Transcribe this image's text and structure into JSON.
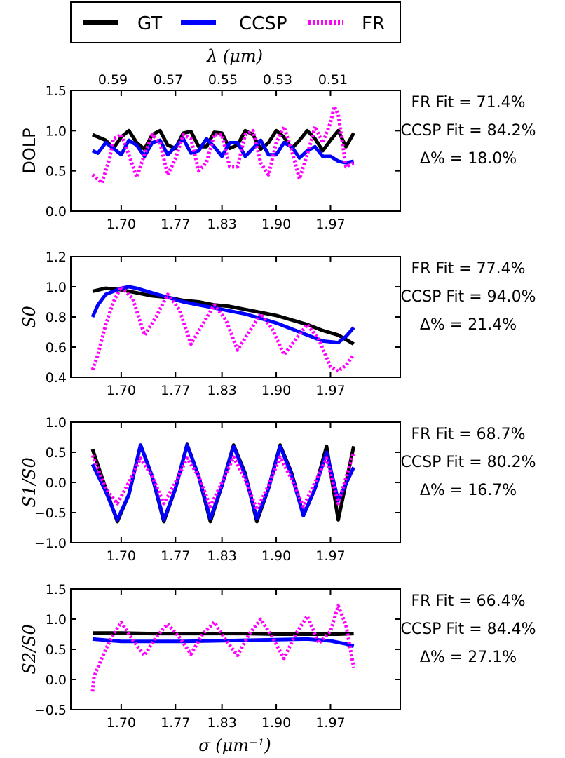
{
  "legend": [
    {
      "name": "GT",
      "color": "#000000",
      "dash": "solid"
    },
    {
      "name": "CCSP",
      "color": "#0000ff",
      "dash": "solid"
    },
    {
      "name": "FR",
      "color": "#ff00ff",
      "dash": "dotted"
    }
  ],
  "top_axis": {
    "label": "λ (μm)",
    "ticks": [
      "0.59",
      "0.57",
      "0.55",
      "0.53",
      "0.51"
    ]
  },
  "bottom_axis": {
    "label": "σ (μm⁻¹)"
  },
  "chart_data": [
    {
      "type": "line",
      "ylabel": "DOLP",
      "ylim": [
        0.0,
        1.5
      ],
      "yticks": [
        "0.0",
        "0.5",
        "1.0",
        "1.5"
      ],
      "xlim": [
        1.635,
        2.06
      ],
      "xticks": [
        "1.70",
        "1.77",
        "1.83",
        "1.90",
        "1.97"
      ],
      "series": [
        {
          "name": "GT",
          "x": [
            1.663,
            1.68,
            1.69,
            1.7,
            1.71,
            1.72,
            1.73,
            1.74,
            1.75,
            1.76,
            1.77,
            1.78,
            1.79,
            1.8,
            1.81,
            1.82,
            1.83,
            1.84,
            1.85,
            1.86,
            1.87,
            1.88,
            1.89,
            1.9,
            1.91,
            1.92,
            1.93,
            1.94,
            1.95,
            1.96,
            1.97,
            1.98,
            1.99,
            2.0
          ],
          "y": [
            0.95,
            0.88,
            0.78,
            0.92,
            1.0,
            0.85,
            0.77,
            0.95,
            1.0,
            0.82,
            0.78,
            0.97,
            0.99,
            0.8,
            0.8,
            0.98,
            0.97,
            0.78,
            0.82,
            1.0,
            0.95,
            0.77,
            0.85,
            1.0,
            0.92,
            0.78,
            0.88,
            1.0,
            0.9,
            0.75,
            0.88,
            1.0,
            0.8,
            0.97
          ]
        },
        {
          "name": "CCSP",
          "x": [
            1.663,
            1.67,
            1.68,
            1.69,
            1.7,
            1.71,
            1.72,
            1.73,
            1.74,
            1.75,
            1.76,
            1.77,
            1.78,
            1.79,
            1.8,
            1.81,
            1.82,
            1.83,
            1.84,
            1.85,
            1.86,
            1.87,
            1.88,
            1.89,
            1.9,
            1.91,
            1.92,
            1.93,
            1.94,
            1.95,
            1.96,
            1.97,
            1.98,
            1.99,
            2.0
          ],
          "y": [
            0.75,
            0.72,
            0.85,
            0.78,
            0.7,
            0.88,
            0.82,
            0.68,
            0.85,
            0.88,
            0.7,
            0.8,
            0.9,
            0.72,
            0.75,
            0.9,
            0.8,
            0.68,
            0.85,
            0.85,
            0.68,
            0.78,
            0.88,
            0.7,
            0.7,
            0.85,
            0.8,
            0.66,
            0.75,
            0.8,
            0.68,
            0.68,
            0.62,
            0.6,
            0.62
          ]
        },
        {
          "name": "FR",
          "x": [
            1.663,
            1.67,
            1.675,
            1.685,
            1.69,
            1.7,
            1.71,
            1.72,
            1.73,
            1.74,
            1.75,
            1.76,
            1.77,
            1.78,
            1.79,
            1.8,
            1.81,
            1.82,
            1.83,
            1.84,
            1.85,
            1.86,
            1.87,
            1.88,
            1.89,
            1.9,
            1.91,
            1.92,
            1.93,
            1.94,
            1.95,
            1.96,
            1.97,
            1.975,
            1.98,
            1.99,
            2.0
          ],
          "y": [
            0.45,
            0.4,
            0.35,
            0.65,
            0.9,
            0.95,
            0.7,
            0.42,
            0.7,
            0.95,
            0.85,
            0.45,
            0.65,
            0.95,
            0.9,
            0.5,
            0.6,
            0.95,
            0.95,
            0.55,
            0.55,
            0.95,
            1.0,
            0.6,
            0.45,
            0.85,
            1.05,
            0.75,
            0.4,
            0.7,
            1.05,
            0.85,
            1.1,
            1.3,
            1.2,
            0.55,
            0.6
          ]
        }
      ],
      "annotations": [
        "FR Fit = 71.4%",
        "CCSP Fit = 84.2%",
        "Δ% = 18.0%"
      ]
    },
    {
      "type": "line",
      "ylabel": "S0",
      "ylim": [
        0.4,
        1.2
      ],
      "yticks": [
        "0.4",
        "0.6",
        "0.8",
        "1.0",
        "1.2"
      ],
      "xlim": [
        1.635,
        2.06
      ],
      "xticks": [
        "1.70",
        "1.77",
        "1.83",
        "1.90",
        "1.97"
      ],
      "series": [
        {
          "name": "GT",
          "x": [
            1.663,
            1.68,
            1.7,
            1.72,
            1.74,
            1.76,
            1.78,
            1.8,
            1.82,
            1.84,
            1.86,
            1.88,
            1.9,
            1.92,
            1.94,
            1.96,
            1.98,
            2.0
          ],
          "y": [
            0.97,
            0.99,
            0.98,
            0.96,
            0.94,
            0.93,
            0.91,
            0.9,
            0.88,
            0.87,
            0.85,
            0.83,
            0.81,
            0.78,
            0.75,
            0.71,
            0.68,
            0.62
          ]
        },
        {
          "name": "CCSP",
          "x": [
            1.663,
            1.67,
            1.68,
            1.69,
            1.7,
            1.71,
            1.72,
            1.74,
            1.76,
            1.78,
            1.8,
            1.82,
            1.84,
            1.86,
            1.88,
            1.9,
            1.92,
            1.94,
            1.96,
            1.98,
            1.99,
            2.0
          ],
          "y": [
            0.8,
            0.88,
            0.95,
            0.97,
            0.99,
            1.0,
            0.99,
            0.96,
            0.93,
            0.9,
            0.88,
            0.86,
            0.84,
            0.82,
            0.79,
            0.76,
            0.72,
            0.68,
            0.64,
            0.63,
            0.67,
            0.73
          ]
        },
        {
          "name": "FR",
          "x": [
            1.663,
            1.67,
            1.68,
            1.69,
            1.7,
            1.715,
            1.73,
            1.745,
            1.76,
            1.775,
            1.79,
            1.805,
            1.82,
            1.835,
            1.85,
            1.865,
            1.88,
            1.895,
            1.91,
            1.925,
            1.94,
            1.955,
            1.97,
            1.98,
            1.99,
            2.0
          ],
          "y": [
            0.45,
            0.55,
            0.75,
            0.9,
            1.0,
            0.92,
            0.68,
            0.8,
            0.95,
            0.85,
            0.62,
            0.75,
            0.88,
            0.78,
            0.58,
            0.7,
            0.82,
            0.72,
            0.55,
            0.65,
            0.75,
            0.65,
            0.47,
            0.44,
            0.48,
            0.55
          ]
        }
      ],
      "annotations": [
        "FR Fit = 77.4%",
        "CCSP Fit = 94.0%",
        "Δ% = 21.4%"
      ]
    },
    {
      "type": "line",
      "ylabel": "S1/S0",
      "ylim": [
        -1.0,
        1.0
      ],
      "yticks": [
        "−1.0",
        "−0.5",
        "0.0",
        "0.5",
        "1.0"
      ],
      "xlim": [
        1.635,
        2.06
      ],
      "xticks": [
        "1.70",
        "1.77",
        "1.83",
        "1.90",
        "1.97"
      ],
      "series": [
        {
          "name": "GT",
          "x": [
            1.663,
            1.68,
            1.695,
            1.71,
            1.725,
            1.74,
            1.755,
            1.77,
            1.785,
            1.8,
            1.815,
            1.83,
            1.845,
            1.86,
            1.875,
            1.89,
            1.905,
            1.92,
            1.935,
            1.95,
            1.965,
            1.98,
            2.0
          ],
          "y": [
            0.55,
            -0.1,
            -0.65,
            -0.2,
            0.62,
            0.1,
            -0.65,
            -0.1,
            0.63,
            0.1,
            -0.65,
            -0.05,
            0.62,
            0.15,
            -0.65,
            -0.1,
            0.62,
            0.15,
            -0.55,
            -0.1,
            0.6,
            -0.62,
            0.6
          ]
        },
        {
          "name": "CCSP",
          "x": [
            1.663,
            1.68,
            1.695,
            1.71,
            1.725,
            1.74,
            1.755,
            1.77,
            1.785,
            1.8,
            1.815,
            1.83,
            1.845,
            1.86,
            1.875,
            1.89,
            1.905,
            1.92,
            1.935,
            1.95,
            1.965,
            1.98,
            2.0
          ],
          "y": [
            0.3,
            -0.15,
            -0.62,
            -0.2,
            0.62,
            0.1,
            -0.62,
            -0.1,
            0.62,
            0.1,
            -0.6,
            -0.05,
            0.6,
            0.12,
            -0.6,
            -0.1,
            0.6,
            0.12,
            -0.55,
            -0.1,
            0.5,
            -0.3,
            0.25
          ]
        },
        {
          "name": "FR",
          "x": [
            1.663,
            1.68,
            1.695,
            1.71,
            1.725,
            1.74,
            1.755,
            1.77,
            1.785,
            1.8,
            1.815,
            1.83,
            1.845,
            1.86,
            1.875,
            1.89,
            1.905,
            1.92,
            1.935,
            1.95,
            1.965,
            1.98,
            2.0
          ],
          "y": [
            0.45,
            -0.1,
            -0.35,
            0.0,
            0.4,
            0.1,
            -0.35,
            0.0,
            0.4,
            0.1,
            -0.4,
            0.0,
            0.42,
            0.05,
            -0.45,
            -0.05,
            0.42,
            0.05,
            -0.4,
            0.0,
            0.4,
            -0.35,
            0.5
          ]
        }
      ],
      "annotations": [
        "FR Fit = 68.7%",
        "CCSP Fit = 80.2%",
        "Δ% = 16.7%"
      ]
    },
    {
      "type": "line",
      "ylabel": "S2/S0",
      "ylim": [
        -0.5,
        1.5
      ],
      "yticks": [
        "−0.5",
        "0.0",
        "0.5",
        "1.0",
        "1.5"
      ],
      "xlim": [
        1.635,
        2.06
      ],
      "xticks": [
        "1.70",
        "1.77",
        "1.83",
        "1.90",
        "1.97"
      ],
      "series": [
        {
          "name": "GT",
          "x": [
            1.663,
            1.7,
            1.74,
            1.78,
            1.82,
            1.86,
            1.9,
            1.94,
            1.98,
            2.0
          ],
          "y": [
            0.77,
            0.77,
            0.76,
            0.76,
            0.76,
            0.76,
            0.75,
            0.75,
            0.75,
            0.76
          ]
        },
        {
          "name": "CCSP",
          "x": [
            1.663,
            1.7,
            1.74,
            1.78,
            1.82,
            1.86,
            1.9,
            1.94,
            1.97,
            1.99,
            2.0
          ],
          "y": [
            0.67,
            0.63,
            0.63,
            0.63,
            0.64,
            0.65,
            0.66,
            0.67,
            0.64,
            0.59,
            0.55
          ]
        },
        {
          "name": "FR",
          "x": [
            1.663,
            1.665,
            1.67,
            1.68,
            1.69,
            1.7,
            1.715,
            1.73,
            1.745,
            1.76,
            1.775,
            1.79,
            1.805,
            1.82,
            1.835,
            1.85,
            1.865,
            1.88,
            1.895,
            1.91,
            1.925,
            1.94,
            1.955,
            1.97,
            1.98,
            1.99,
            2.0
          ],
          "y": [
            -0.2,
            0.05,
            0.2,
            0.5,
            0.75,
            0.95,
            0.65,
            0.4,
            0.7,
            0.92,
            0.7,
            0.42,
            0.75,
            0.95,
            0.65,
            0.4,
            0.75,
            1.0,
            0.7,
            0.35,
            0.75,
            1.05,
            0.6,
            0.8,
            1.22,
            0.9,
            0.2
          ]
        }
      ],
      "annotations": [
        "FR Fit = 66.4%",
        "CCSP Fit = 84.4%",
        "Δ% = 27.1%"
      ]
    }
  ]
}
